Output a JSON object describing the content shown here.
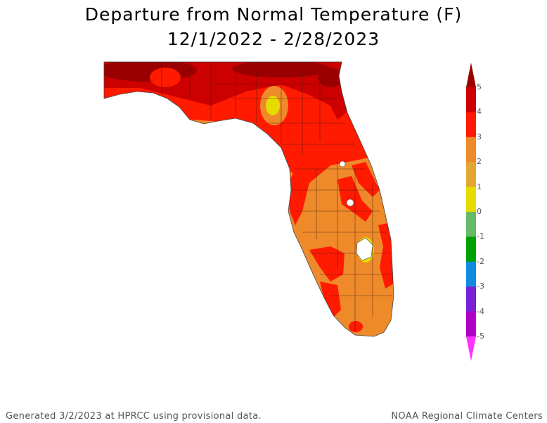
{
  "title_line1": "Departure from Normal Temperature (F)",
  "title_line2": "12/1/2022 - 2/28/2023",
  "footer_left": "Generated 3/2/2023 at HPRCC using provisional data.",
  "footer_right": "NOAA Regional Climate Centers",
  "legend": {
    "labels": [
      "5",
      "4",
      "3",
      "2",
      "1",
      "0",
      "-1",
      "-2",
      "-3",
      "-4",
      "-5"
    ],
    "colors": [
      "#9b0000",
      "#cc0000",
      "#ff1a00",
      "#ee8a2a",
      "#e3a633",
      "#e6dc00",
      "#66bb66",
      "#00a000",
      "#0f8ce0",
      "#7a1fd6",
      "#b000c8",
      "#ff33ff"
    ]
  }
}
